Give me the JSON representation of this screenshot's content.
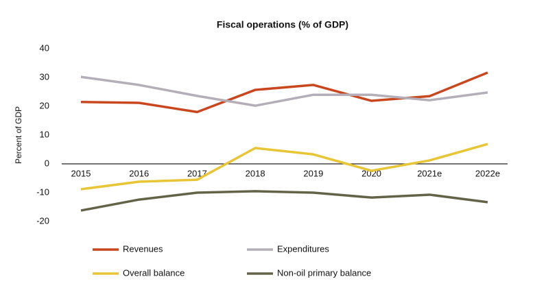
{
  "chart_data": {
    "type": "line",
    "title": "Fiscal operations (% of GDP)",
    "y_label": "Percent of GDP",
    "categories": [
      "2015",
      "2016",
      "2017",
      "2018",
      "2019",
      "2020",
      "2021e",
      "2022e"
    ],
    "series": [
      {
        "name": "Revenues",
        "color": "#c8471f",
        "values": [
          21.5,
          21.2,
          18,
          25.7,
          27.4,
          21.9,
          23.5,
          31.7
        ]
      },
      {
        "name": "Expenditures",
        "color": "#b3aeb8",
        "values": [
          30.2,
          27.4,
          23.6,
          20.2,
          24,
          24,
          22.1,
          24.8
        ]
      },
      {
        "name": "Overall balance",
        "color": "#e8c534",
        "values": [
          -8.8,
          -6.2,
          -5.5,
          5.5,
          3.3,
          -2.4,
          1.2,
          6.9
        ]
      },
      {
        "name": "Non-oil primary balance",
        "color": "#636347",
        "values": [
          -16.2,
          -12.4,
          -10,
          -9.5,
          -10,
          -11.7,
          -10.7,
          -13.3
        ]
      }
    ],
    "ylim": [
      -20,
      40
    ],
    "yticks": [
      -20,
      -10,
      0,
      10,
      20,
      30,
      40
    ],
    "grid": false
  }
}
